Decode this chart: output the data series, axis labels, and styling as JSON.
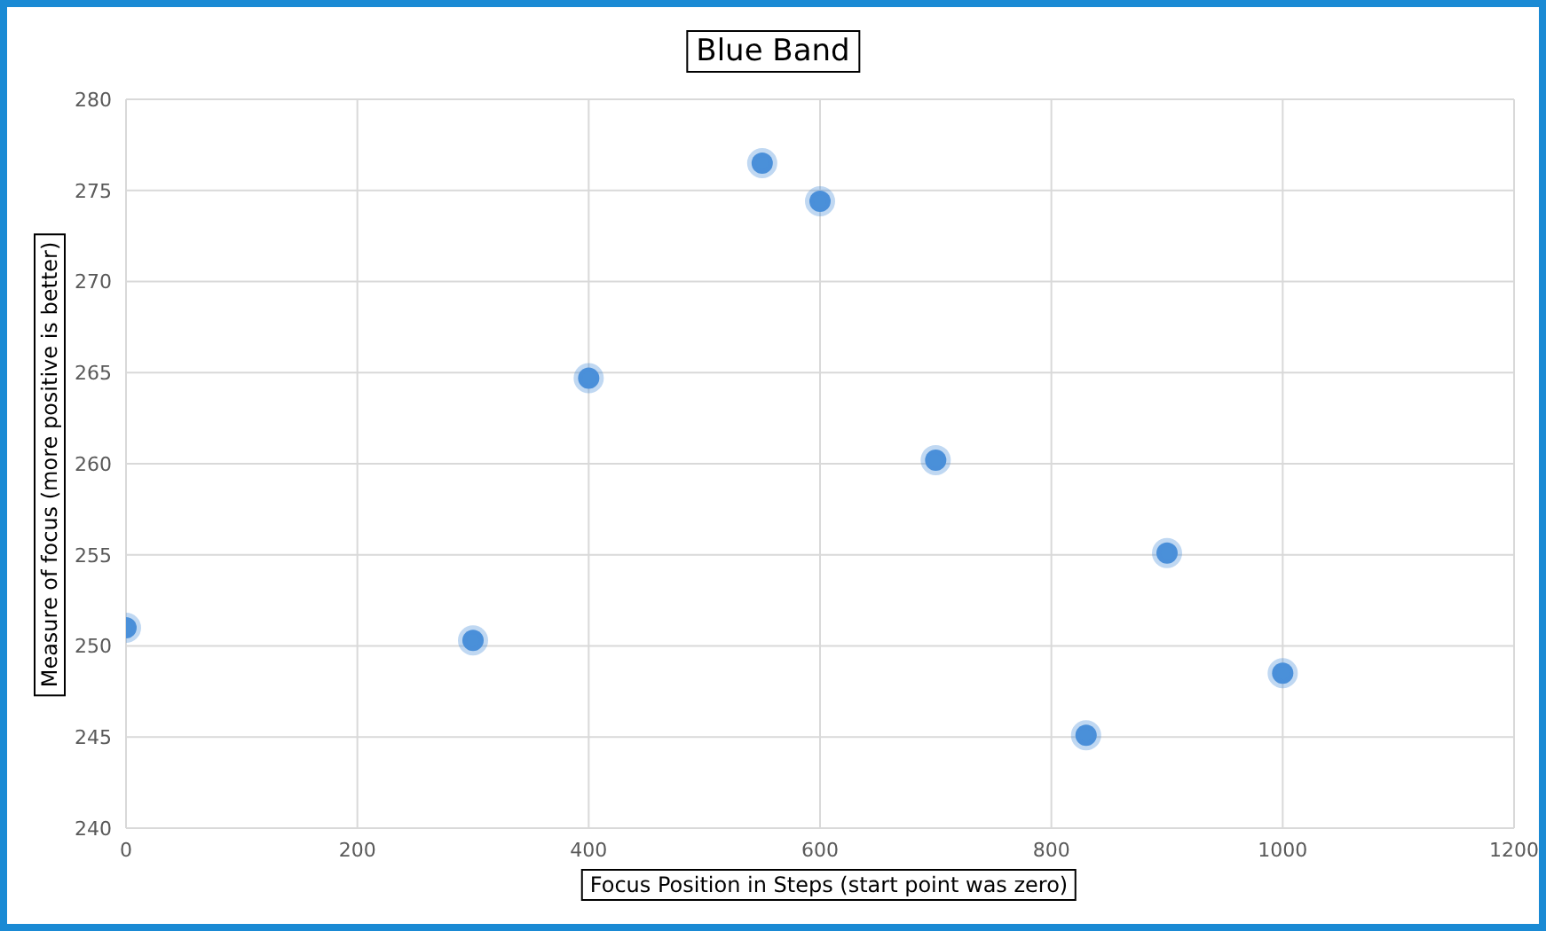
{
  "chart_data": {
    "type": "scatter",
    "title": "Blue Band",
    "xlabel": "Focus Position in Steps (start point was zero)",
    "ylabel": "Measure of focus (more positive is better)",
    "x": [
      0,
      300,
      400,
      550,
      600,
      700,
      830,
      900,
      1000
    ],
    "values": [
      251.0,
      250.3,
      264.7,
      276.5,
      274.4,
      260.2,
      245.1,
      255.1,
      248.5
    ],
    "color": "#4a90d9",
    "xlim": [
      0,
      1200
    ],
    "xticks": [
      0,
      200,
      400,
      600,
      800,
      1000,
      1200
    ],
    "ylim": [
      240,
      280
    ],
    "yticks": [
      240,
      245,
      250,
      255,
      260,
      265,
      270,
      275,
      280
    ],
    "grid": true,
    "marker": "circle"
  }
}
